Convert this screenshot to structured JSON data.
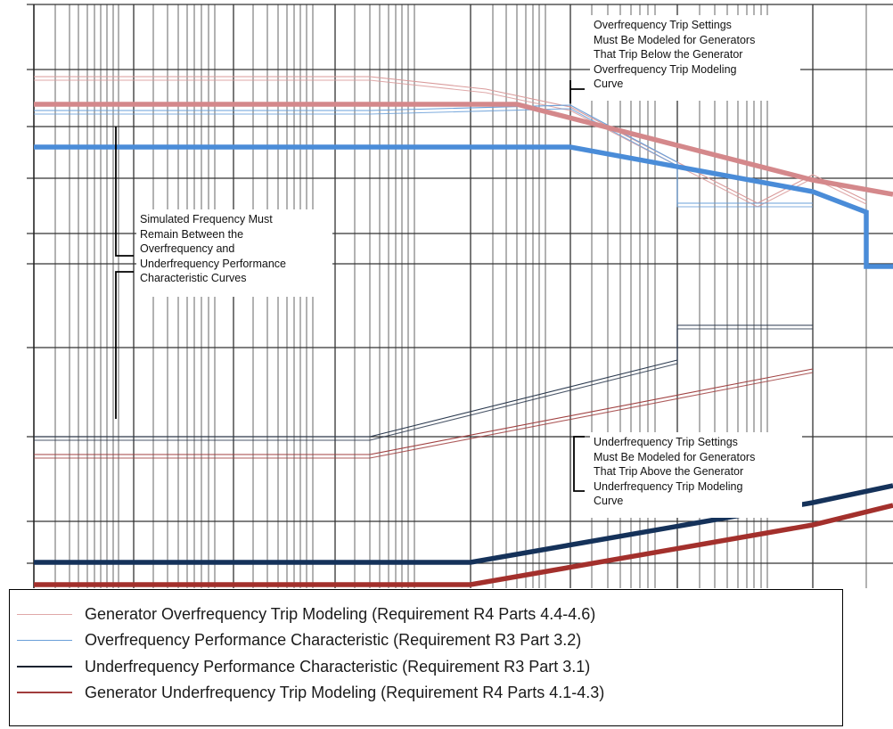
{
  "chart_data": {
    "type": "line",
    "title": "",
    "xlabel": "",
    "ylabel": "",
    "x_scale": "log",
    "grid": true,
    "legend_placement": "bottom",
    "series": [
      {
        "name": "Generator Overfrequency Trip Modeling (Requirement R4 Parts 4.4-4.6)",
        "color": "#d99a9a",
        "style": "thin double line",
        "points": [
          [
            0,
            61.6
          ],
          [
            0.45,
            61.6
          ],
          [
            1.1,
            61.05
          ],
          [
            2.3,
            60.85
          ],
          [
            4.4,
            60.62
          ],
          [
            7.0,
            60.48
          ],
          [
            9.2,
            60.4
          ],
          [
            16,
            60.25
          ]
        ]
      },
      {
        "name": "Overfrequency Performance Characteristic (Requirement R3 Part 3.2)",
        "color": "#6a9fd8",
        "style": "thin double line",
        "points": [
          [
            0,
            61.2
          ],
          [
            0.45,
            61.2
          ],
          [
            2.3,
            61.1
          ],
          [
            4.4,
            60.62
          ],
          [
            4.4,
            60.48
          ],
          [
            9.2,
            60.48
          ]
        ]
      },
      {
        "name": "Underfrequency Performance Characteristic (Requirement R3 Part 3.1)",
        "color": "#2b3a4f",
        "style": "thin double line",
        "points": [
          [
            0,
            57.8
          ],
          [
            0.45,
            57.8
          ],
          [
            4.4,
            58.35
          ],
          [
            4.4,
            58.78
          ],
          [
            9.2,
            58.78
          ]
        ]
      },
      {
        "name": "Generator Underfrequency Trip Modeling (Requirement R4 Parts 4.1-4.3)",
        "color": "#a04040",
        "style": "thin double line",
        "points": [
          [
            0,
            57.6
          ],
          [
            0.45,
            57.6
          ],
          [
            9.2,
            58.18
          ]
        ]
      }
    ],
    "bold_curves": [
      {
        "name": "",
        "color": "#d4888b",
        "points": [
          [
            0,
            61.3
          ],
          [
            1.4,
            61.3
          ],
          [
            9.2,
            60.68
          ],
          [
            20,
            60.53
          ]
        ]
      },
      {
        "name": "",
        "color": "#4a8cd8",
        "points": [
          [
            0,
            60.83
          ],
          [
            2.3,
            60.83
          ],
          [
            9.2,
            60.5
          ],
          [
            16,
            60.34
          ],
          [
            16,
            60.03
          ],
          [
            20,
            60.03
          ]
        ]
      },
      {
        "name": "",
        "color": "#15325a",
        "points": [
          [
            0,
            56.65
          ],
          [
            0.95,
            56.65
          ],
          [
            9.2,
            57.18
          ],
          [
            20,
            57.42
          ]
        ]
      },
      {
        "name": "",
        "color": "#a3302c",
        "points": [
          [
            0,
            56.42
          ],
          [
            0.95,
            56.42
          ],
          [
            9.2,
            57.0
          ],
          [
            20,
            57.23
          ]
        ]
      }
    ]
  },
  "annotations": {
    "overfrequency_note": {
      "lines": [
        "Overfrequency Trip Settings",
        "Must Be Modeled for Generators",
        "That Trip Below the Generator",
        "Overfrequency Trip Modeling",
        "Curve"
      ]
    },
    "simulated_note": {
      "lines": [
        "Simulated Frequency Must",
        "Remain Between the",
        "Overfrequency and",
        "Underfrequency Performance",
        "Characteristic Curves"
      ]
    },
    "underfrequency_note": {
      "lines": [
        "Underfrequency Trip Settings",
        "Must Be Modeled for Generators",
        "That Trip Above the Generator",
        "Underfrequency Trip Modeling",
        "Curve"
      ]
    }
  },
  "legend": {
    "items": [
      {
        "label": "Generator Overfrequency Trip Modeling (Requirement R4 Parts 4.4-4.6)",
        "color": "#e0a8a8"
      },
      {
        "label": "Overfrequency Performance Characteristic (Requirement R3 Part 3.2)",
        "color": "#6a9fd8"
      },
      {
        "label": "Underfrequency Performance Characteristic (Requirement R3 Part 3.1)",
        "color": "#1a2230"
      },
      {
        "label": "Generator Underfrequency Trip Modeling (Requirement R4 Parts 4.1-4.3)",
        "color": "#a03c3c"
      }
    ]
  }
}
